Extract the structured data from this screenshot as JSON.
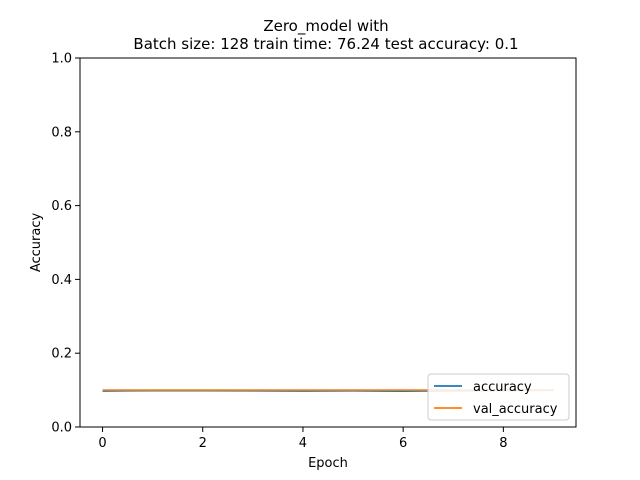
{
  "chart_data": {
    "type": "line",
    "title_line1": "Zero_model with",
    "title_line2": "Batch size: 128  train time: 76.24  test accuracy: 0.1",
    "xlabel": "Epoch",
    "ylabel": "Accuracy",
    "xlim": [
      -0.45,
      9.45
    ],
    "ylim": [
      0.0,
      1.0
    ],
    "xticks": [
      0,
      2,
      4,
      6,
      8
    ],
    "xtick_labels": [
      "0",
      "2",
      "4",
      "6",
      "8"
    ],
    "yticks": [
      0.0,
      0.2,
      0.4,
      0.6,
      0.8,
      1.0
    ],
    "ytick_labels": [
      "0.0",
      "0.2",
      "0.4",
      "0.6",
      "0.8",
      "1.0"
    ],
    "grid": false,
    "legend_position": "lower-right",
    "x": [
      0,
      1,
      2,
      3,
      4,
      5,
      6,
      7,
      8,
      9
    ],
    "series": [
      {
        "name": "accuracy",
        "color": "#1f77b4",
        "values": [
          0.0975,
          0.0985,
          0.0985,
          0.098,
          0.0975,
          0.098,
          0.097,
          0.0985,
          0.099,
          0.0995
        ]
      },
      {
        "name": "val_accuracy",
        "color": "#ff7f0e",
        "values": [
          0.1,
          0.1,
          0.1,
          0.1,
          0.1,
          0.1,
          0.1,
          0.1,
          0.1,
          0.1
        ]
      }
    ]
  }
}
